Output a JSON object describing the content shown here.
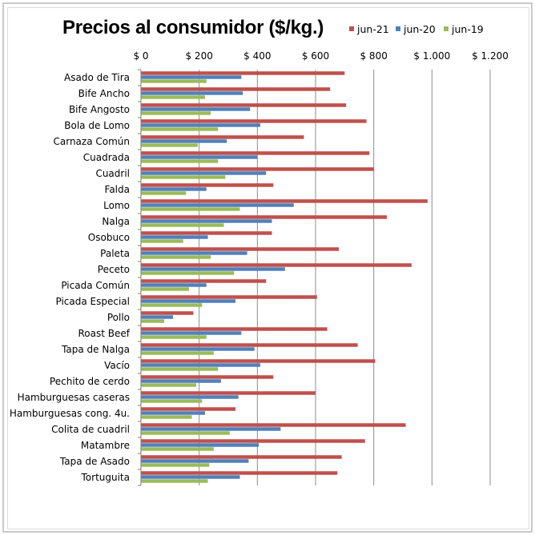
{
  "chart_data": {
    "type": "bar",
    "orientation": "horizontal",
    "title": "Precios al consumidor ($/kg.)",
    "xlabel": "",
    "ylabel": "",
    "xlim": [
      0,
      1200
    ],
    "x_ticks": [
      0,
      200,
      400,
      600,
      800,
      1000,
      1200
    ],
    "x_tick_labels": [
      "$ 0",
      "$ 200",
      "$ 400",
      "$ 600",
      "$ 800",
      "$ 1.000",
      "$ 1.200"
    ],
    "legend_position": "top-right",
    "grid": "vertical",
    "categories": [
      "Asado de Tira",
      "Bife Ancho",
      "Bife Angosto",
      "Bola de Lomo",
      "Carnaza Común",
      "Cuadrada",
      "Cuadril",
      "Falda",
      "Lomo",
      "Nalga",
      "Osobuco",
      "Paleta",
      "Peceto",
      "Picada Común",
      "Picada Especial",
      "Pollo",
      "Roast Beef",
      "Tapa de Nalga",
      "Vacío",
      "Pechito de cerdo",
      "Hamburguesas caseras",
      "Hamburguesas cong. 4u.",
      "Colita de cuadril",
      "Matambre",
      "Tapa de Asado",
      "Tortuguita"
    ],
    "series": [
      {
        "name": "jun-21",
        "color": "#c0504d",
        "values": [
          700,
          650,
          705,
          775,
          560,
          785,
          800,
          455,
          985,
          845,
          450,
          680,
          930,
          430,
          605,
          180,
          640,
          745,
          805,
          455,
          600,
          325,
          910,
          770,
          690,
          675
        ]
      },
      {
        "name": "jun-20",
        "color": "#4f81bd",
        "values": [
          345,
          350,
          375,
          410,
          295,
          400,
          430,
          225,
          525,
          450,
          230,
          365,
          495,
          225,
          325,
          110,
          345,
          390,
          410,
          275,
          335,
          220,
          480,
          405,
          370,
          340
        ]
      },
      {
        "name": "jun-19",
        "color": "#9bbb59",
        "values": [
          225,
          220,
          240,
          265,
          195,
          265,
          290,
          155,
          340,
          285,
          145,
          240,
          320,
          165,
          210,
          80,
          225,
          250,
          265,
          190,
          210,
          175,
          305,
          250,
          235,
          230
        ]
      }
    ]
  }
}
